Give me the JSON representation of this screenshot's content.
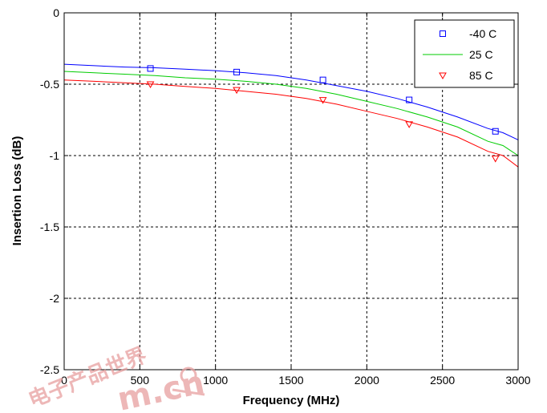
{
  "chart_data": {
    "type": "line",
    "title": "",
    "xlabel": "Frequency (MHz)",
    "ylabel": "Insertion Loss (dB)",
    "xlim": [
      0,
      3000
    ],
    "ylim": [
      -2.5,
      0
    ],
    "x_ticks": [
      "0",
      "500",
      "1000",
      "1500",
      "2000",
      "2500",
      "3000"
    ],
    "y_ticks": [
      "0",
      "-0.5",
      "-1",
      "-1.5",
      "-2",
      "-2.5"
    ],
    "grid": true,
    "legend_position": "top-right",
    "x": [
      0,
      200,
      400,
      600,
      800,
      1000,
      1200,
      1400,
      1600,
      1800,
      2000,
      2200,
      2400,
      2600,
      2800,
      2900,
      3000
    ],
    "series": [
      {
        "name": "-40 C",
        "color": "#0000ff",
        "marker": "square",
        "values": [
          -0.36,
          -0.37,
          -0.38,
          -0.385,
          -0.395,
          -0.405,
          -0.42,
          -0.44,
          -0.47,
          -0.51,
          -0.55,
          -0.6,
          -0.66,
          -0.73,
          -0.81,
          -0.84,
          -0.89
        ],
        "marker_x": [
          570,
          1140,
          1710,
          2280,
          2850
        ],
        "marker_y": [
          -0.39,
          -0.415,
          -0.47,
          -0.61,
          -0.83
        ]
      },
      {
        "name": "25 C",
        "color": "#00cc00",
        "marker": "none",
        "values": [
          -0.41,
          -0.42,
          -0.43,
          -0.44,
          -0.455,
          -0.465,
          -0.48,
          -0.5,
          -0.53,
          -0.57,
          -0.62,
          -0.67,
          -0.73,
          -0.8,
          -0.9,
          -0.93,
          -1.0
        ]
      },
      {
        "name": "85 C",
        "color": "#ff0000",
        "marker": "triangle-down",
        "values": [
          -0.47,
          -0.48,
          -0.49,
          -0.5,
          -0.515,
          -0.53,
          -0.55,
          -0.57,
          -0.6,
          -0.64,
          -0.69,
          -0.74,
          -0.8,
          -0.87,
          -0.97,
          -1.0,
          -1.08
        ],
        "marker_x": [
          570,
          1140,
          1710,
          2280,
          2850
        ],
        "marker_y": [
          -0.5,
          -0.54,
          -0.61,
          -0.78,
          -1.02
        ]
      }
    ]
  },
  "watermark": {
    "text": "电子产品世界",
    "domain_text": "m.cn"
  }
}
